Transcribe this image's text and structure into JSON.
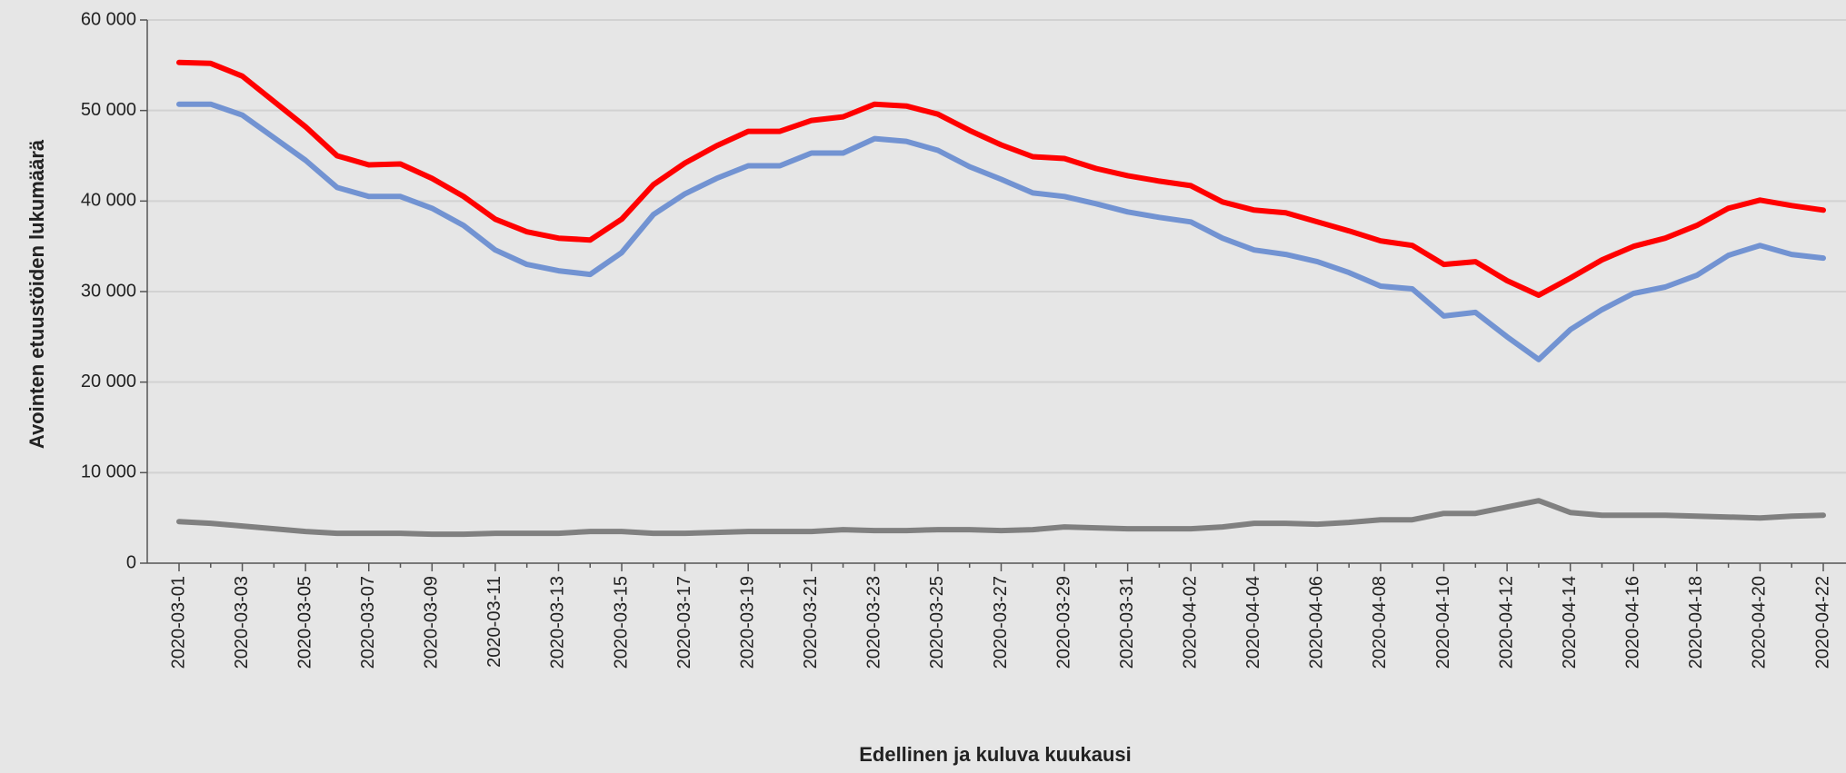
{
  "chart_data": {
    "type": "line",
    "ylabel": "Avointen etuustöiden lukumäärä",
    "xlabel": "Edellinen ja kuluva kuukausi",
    "categories": [
      "2020-03-01",
      null,
      "2020-03-03",
      null,
      "2020-03-05",
      null,
      "2020-03-07",
      null,
      "2020-03-09",
      null,
      "2020-03-11",
      null,
      "2020-03-13",
      null,
      "2020-03-15",
      null,
      "2020-03-17",
      null,
      "2020-03-19",
      null,
      "2020-03-21",
      null,
      "2020-03-23",
      null,
      "2020-03-25",
      null,
      "2020-03-27",
      null,
      "2020-03-29",
      null,
      "2020-03-31",
      null,
      "2020-04-02",
      null,
      "2020-04-04",
      null,
      "2020-04-06",
      null,
      "2020-04-08",
      null,
      "2020-04-10",
      null,
      "2020-04-12",
      null,
      "2020-04-14",
      null,
      "2020-04-16",
      null,
      "2020-04-18",
      null,
      "2020-04-20",
      null,
      "2020-04-22"
    ],
    "series": [
      {
        "color": "#ff0000",
        "values": [
          55300,
          55200,
          53800,
          51000,
          48200,
          45000,
          44000,
          44100,
          42500,
          40500,
          38000,
          36600,
          35900,
          35700,
          38000,
          41800,
          44200,
          46100,
          47700,
          47700,
          48900,
          49300,
          50700,
          50500,
          49600,
          47800,
          46200,
          44900,
          44700,
          43600,
          42800,
          42200,
          41700,
          39900,
          39000,
          38700,
          37700,
          36700,
          35600,
          35100,
          33000,
          33300,
          31200,
          29600,
          31500,
          33500,
          35000,
          35900,
          37300,
          39200,
          40100,
          39500,
          39000
        ]
      },
      {
        "color": "#7293d2",
        "values": [
          50700,
          50700,
          49500,
          47000,
          44500,
          41500,
          40500,
          40500,
          39200,
          37300,
          34600,
          33000,
          32300,
          31900,
          34300,
          38500,
          40800,
          42500,
          43900,
          43900,
          45300,
          45300,
          46900,
          46600,
          45600,
          43800,
          42400,
          40900,
          40500,
          39700,
          38800,
          38200,
          37700,
          35900,
          34600,
          34100,
          33300,
          32100,
          30600,
          30300,
          27300,
          27700,
          25000,
          22500,
          25800,
          28000,
          29800,
          30500,
          31800,
          34000,
          35100,
          34100,
          33700
        ]
      },
      {
        "color": "#808080",
        "values": [
          4600,
          4400,
          4100,
          3800,
          3500,
          3300,
          3300,
          3300,
          3200,
          3200,
          3300,
          3300,
          3300,
          3500,
          3500,
          3300,
          3300,
          3400,
          3500,
          3500,
          3500,
          3700,
          3600,
          3600,
          3700,
          3700,
          3600,
          3700,
          4000,
          3900,
          3800,
          3800,
          3800,
          4000,
          4400,
          4400,
          4300,
          4500,
          4800,
          4800,
          5500,
          5500,
          6200,
          6900,
          5600,
          5300,
          5300,
          5300,
          5200,
          5100,
          5000,
          5200,
          5300
        ]
      }
    ],
    "ylim": [
      0,
      60000
    ],
    "yticks": [
      0,
      {
        "value": 10000,
        "label": "10 000"
      },
      {
        "value": 20000,
        "label": "20 000"
      },
      {
        "value": 30000,
        "label": "30 000"
      },
      {
        "value": 40000,
        "label": "40 000"
      },
      {
        "value": 50000,
        "label": "50 000"
      },
      {
        "value": 60000,
        "label": "60 000"
      }
    ],
    "grid": true
  }
}
